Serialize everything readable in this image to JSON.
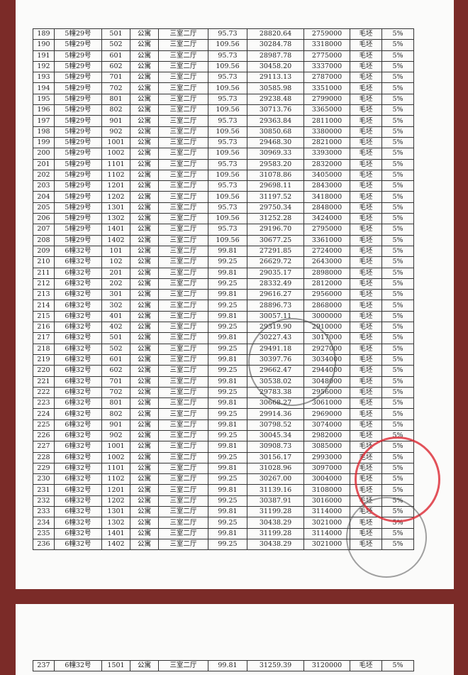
{
  "table": {
    "rows": [
      [
        "189",
        "5幢29号",
        "501",
        "公寓",
        "三室二厅",
        "95.73",
        "28820.64",
        "2759000",
        "毛坯",
        "5%"
      ],
      [
        "190",
        "5幢29号",
        "502",
        "公寓",
        "三室二厅",
        "109.56",
        "30284.78",
        "3318000",
        "毛坯",
        "5%"
      ],
      [
        "191",
        "5幢29号",
        "601",
        "公寓",
        "三室二厅",
        "95.73",
        "28987.78",
        "2775000",
        "毛坯",
        "5%"
      ],
      [
        "192",
        "5幢29号",
        "602",
        "公寓",
        "三室二厅",
        "109.56",
        "30458.20",
        "3337000",
        "毛坯",
        "5%"
      ],
      [
        "193",
        "5幢29号",
        "701",
        "公寓",
        "三室二厅",
        "95.73",
        "29113.13",
        "2787000",
        "毛坯",
        "5%"
      ],
      [
        "194",
        "5幢29号",
        "702",
        "公寓",
        "三室二厅",
        "109.56",
        "30585.98",
        "3351000",
        "毛坯",
        "5%"
      ],
      [
        "195",
        "5幢29号",
        "801",
        "公寓",
        "三室二厅",
        "95.73",
        "29238.48",
        "2799000",
        "毛坯",
        "5%"
      ],
      [
        "196",
        "5幢29号",
        "802",
        "公寓",
        "三室二厅",
        "109.56",
        "30713.76",
        "3365000",
        "毛坯",
        "5%"
      ],
      [
        "197",
        "5幢29号",
        "901",
        "公寓",
        "三室二厅",
        "95.73",
        "29363.84",
        "2811000",
        "毛坯",
        "5%"
      ],
      [
        "198",
        "5幢29号",
        "902",
        "公寓",
        "三室二厅",
        "109.56",
        "30850.68",
        "3380000",
        "毛坯",
        "5%"
      ],
      [
        "199",
        "5幢29号",
        "1001",
        "公寓",
        "三室二厅",
        "95.73",
        "29468.30",
        "2821000",
        "毛坯",
        "5%"
      ],
      [
        "200",
        "5幢29号",
        "1002",
        "公寓",
        "三室二厅",
        "109.56",
        "30969.33",
        "3393000",
        "毛坯",
        "5%"
      ],
      [
        "201",
        "5幢29号",
        "1101",
        "公寓",
        "三室二厅",
        "95.73",
        "29583.20",
        "2832000",
        "毛坯",
        "5%"
      ],
      [
        "202",
        "5幢29号",
        "1102",
        "公寓",
        "三室二厅",
        "109.56",
        "31078.86",
        "3405000",
        "毛坯",
        "5%"
      ],
      [
        "203",
        "5幢29号",
        "1201",
        "公寓",
        "三室二厅",
        "95.73",
        "29698.11",
        "2843000",
        "毛坯",
        "5%"
      ],
      [
        "204",
        "5幢29号",
        "1202",
        "公寓",
        "三室二厅",
        "109.56",
        "31197.52",
        "3418000",
        "毛坯",
        "5%"
      ],
      [
        "205",
        "5幢29号",
        "1301",
        "公寓",
        "三室二厅",
        "95.73",
        "29750.34",
        "2848000",
        "毛坯",
        "5%"
      ],
      [
        "206",
        "5幢29号",
        "1302",
        "公寓",
        "三室二厅",
        "109.56",
        "31252.28",
        "3424000",
        "毛坯",
        "5%"
      ],
      [
        "207",
        "5幢29号",
        "1401",
        "公寓",
        "三室二厅",
        "95.73",
        "29196.70",
        "2795000",
        "毛坯",
        "5%"
      ],
      [
        "208",
        "5幢29号",
        "1402",
        "公寓",
        "三室二厅",
        "109.56",
        "30677.25",
        "3361000",
        "毛坯",
        "5%"
      ],
      [
        "209",
        "6幢32号",
        "101",
        "公寓",
        "三室二厅",
        "99.81",
        "27291.85",
        "2724000",
        "毛坯",
        "5%"
      ],
      [
        "210",
        "6幢32号",
        "102",
        "公寓",
        "三室二厅",
        "99.25",
        "26629.72",
        "2643000",
        "毛坯",
        "5%"
      ],
      [
        "211",
        "6幢32号",
        "201",
        "公寓",
        "三室二厅",
        "99.81",
        "29035.17",
        "2898000",
        "毛坯",
        "5%"
      ],
      [
        "212",
        "6幢32号",
        "202",
        "公寓",
        "三室二厅",
        "99.25",
        "28332.49",
        "2812000",
        "毛坯",
        "5%"
      ],
      [
        "213",
        "6幢32号",
        "301",
        "公寓",
        "三室二厅",
        "99.81",
        "29616.27",
        "2956000",
        "毛坯",
        "5%"
      ],
      [
        "214",
        "6幢32号",
        "302",
        "公寓",
        "三室二厅",
        "99.25",
        "28896.73",
        "2868000",
        "毛坯",
        "5%"
      ],
      [
        "215",
        "6幢32号",
        "401",
        "公寓",
        "三室二厅",
        "99.81",
        "30057.11",
        "3000000",
        "毛坯",
        "5%"
      ],
      [
        "216",
        "6幢32号",
        "402",
        "公寓",
        "三室二厅",
        "99.25",
        "29319.90",
        "2910000",
        "毛坯",
        "5%"
      ],
      [
        "217",
        "6幢32号",
        "501",
        "公寓",
        "三室二厅",
        "99.81",
        "30227.43",
        "3017000",
        "毛坯",
        "5%"
      ],
      [
        "218",
        "6幢32号",
        "502",
        "公寓",
        "三室二厅",
        "99.25",
        "29491.18",
        "2927000",
        "毛坯",
        "5%"
      ],
      [
        "219",
        "6幢32号",
        "601",
        "公寓",
        "三室二厅",
        "99.81",
        "30397.76",
        "3034000",
        "毛坯",
        "5%"
      ],
      [
        "220",
        "6幢32号",
        "602",
        "公寓",
        "三室二厅",
        "99.25",
        "29662.47",
        "2944000",
        "毛坯",
        "5%"
      ],
      [
        "221",
        "6幢32号",
        "701",
        "公寓",
        "三室二厅",
        "99.81",
        "30538.02",
        "3048000",
        "毛坯",
        "5%"
      ],
      [
        "222",
        "6幢32号",
        "702",
        "公寓",
        "三室二厅",
        "99.25",
        "29783.38",
        "2956000",
        "毛坯",
        "5%"
      ],
      [
        "223",
        "6幢32号",
        "801",
        "公寓",
        "三室二厅",
        "99.81",
        "30668.27",
        "3061000",
        "毛坯",
        "5%"
      ],
      [
        "224",
        "6幢32号",
        "802",
        "公寓",
        "三室二厅",
        "99.25",
        "29914.36",
        "2969000",
        "毛坯",
        "5%"
      ],
      [
        "225",
        "6幢32号",
        "901",
        "公寓",
        "三室二厅",
        "99.81",
        "30798.52",
        "3074000",
        "毛坯",
        "5%"
      ],
      [
        "226",
        "6幢32号",
        "902",
        "公寓",
        "三室二厅",
        "99.25",
        "30045.34",
        "2982000",
        "毛坯",
        "5%"
      ],
      [
        "227",
        "6幢32号",
        "1001",
        "公寓",
        "三室二厅",
        "99.81",
        "30908.73",
        "3085000",
        "毛坯",
        "5%"
      ],
      [
        "228",
        "6幢32号",
        "1002",
        "公寓",
        "三室二厅",
        "99.25",
        "30156.17",
        "2993000",
        "毛坯",
        "5%"
      ],
      [
        "229",
        "6幢32号",
        "1101",
        "公寓",
        "三室二厅",
        "99.81",
        "31028.96",
        "3097000",
        "毛坯",
        "5%"
      ],
      [
        "230",
        "6幢32号",
        "1102",
        "公寓",
        "三室二厅",
        "99.25",
        "30267.00",
        "3004000",
        "毛坯",
        "5%"
      ],
      [
        "231",
        "6幢32号",
        "1201",
        "公寓",
        "三室二厅",
        "99.81",
        "31139.16",
        "3108000",
        "毛坯",
        "5%"
      ],
      [
        "232",
        "6幢32号",
        "1202",
        "公寓",
        "三室二厅",
        "99.25",
        "30387.91",
        "3016000",
        "毛坯",
        "5%"
      ],
      [
        "233",
        "6幢32号",
        "1301",
        "公寓",
        "三室二厅",
        "99.81",
        "31199.28",
        "3114000",
        "毛坯",
        "5%"
      ],
      [
        "234",
        "6幢32号",
        "1302",
        "公寓",
        "三室二厅",
        "99.25",
        "30438.29",
        "3021000",
        "毛坯",
        "5%"
      ],
      [
        "235",
        "6幢32号",
        "1401",
        "公寓",
        "三室二厅",
        "99.81",
        "31199.28",
        "3114000",
        "毛坯",
        "5%"
      ],
      [
        "236",
        "6幢32号",
        "1402",
        "公寓",
        "三室二厅",
        "99.25",
        "30438.29",
        "3021000",
        "毛坯",
        "5%"
      ]
    ]
  },
  "table_continued": {
    "rows": [
      [
        "237",
        "6幢32号",
        "1501",
        "公寓",
        "三室二厅",
        "99.81",
        "31259.39",
        "3120000",
        "毛坯",
        "5%"
      ]
    ]
  }
}
